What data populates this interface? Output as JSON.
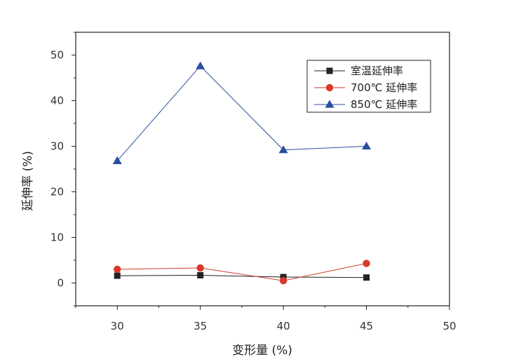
{
  "chart_data": {
    "type": "line",
    "xlabel": "变形量 (%)",
    "ylabel": "延伸率 (%)",
    "xlim": [
      27.5,
      50
    ],
    "ylim": [
      -5,
      55
    ],
    "xticks": [
      30,
      35,
      40,
      45,
      50
    ],
    "yticks": [
      0,
      10,
      20,
      30,
      40,
      50
    ],
    "x": [
      30,
      35,
      40,
      45
    ],
    "grid": false,
    "legend_position": "top-right",
    "series": [
      {
        "name": "室温延伸率",
        "values": [
          1.6,
          1.7,
          1.3,
          1.2
        ],
        "color": "#222222",
        "marker": "square"
      },
      {
        "name": "700℃ 延伸率",
        "values": [
          3.0,
          3.3,
          0.5,
          4.3
        ],
        "color": "#d63a2a",
        "marker": "circle"
      },
      {
        "name": "850℃ 延伸率",
        "values": [
          26.8,
          47.6,
          29.2,
          30.0
        ],
        "color": "#2a4f9e",
        "marker": "triangle"
      }
    ]
  }
}
